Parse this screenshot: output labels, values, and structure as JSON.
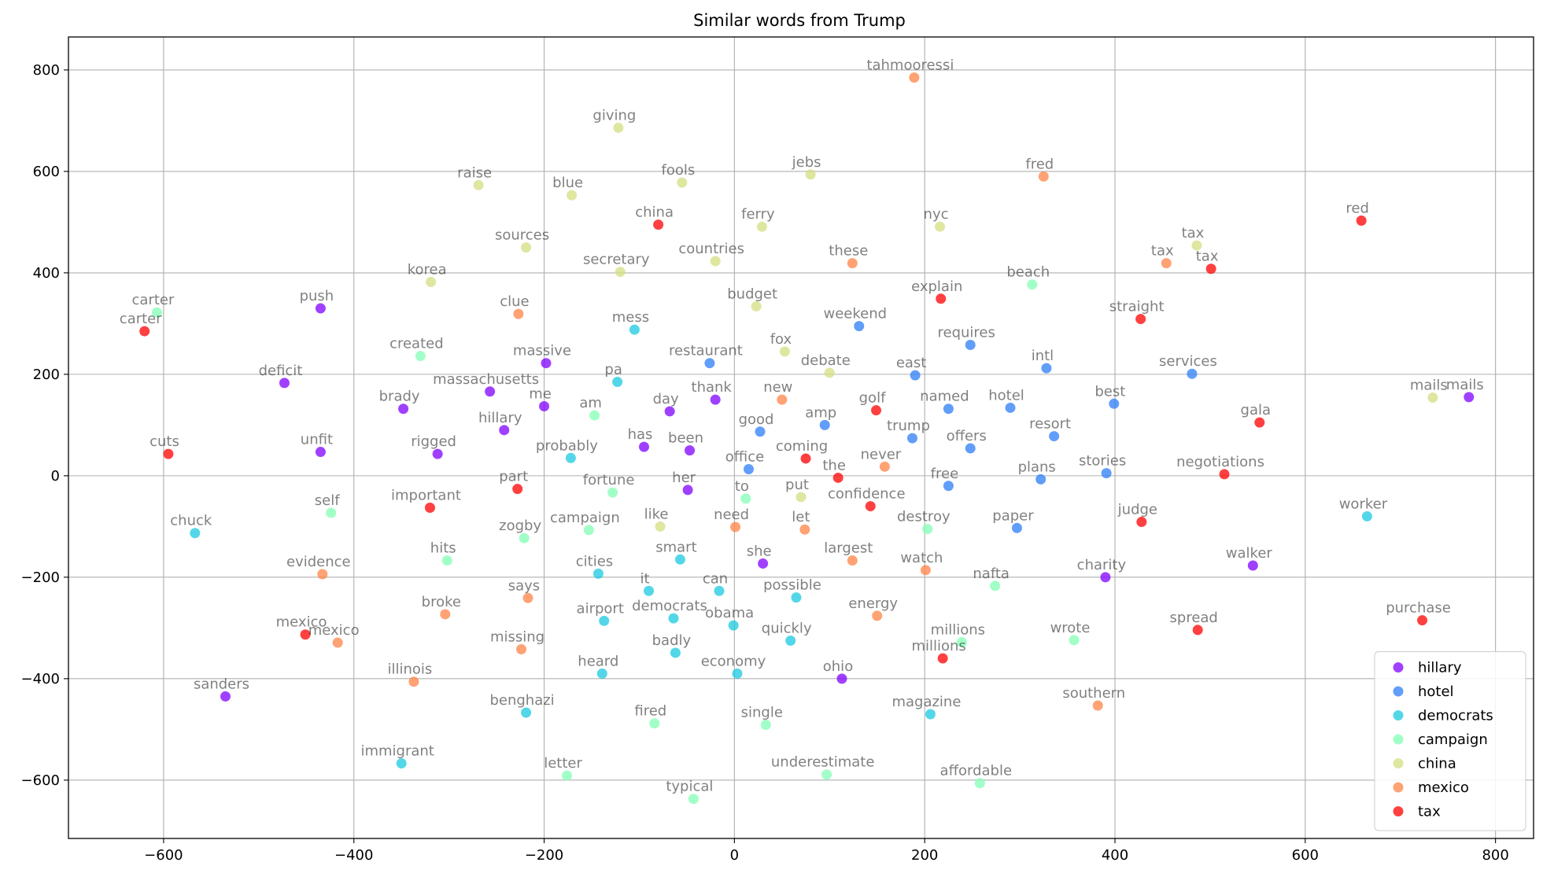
{
  "chart_data": {
    "type": "scatter",
    "title": "Similar words from Trump",
    "xlabel": "",
    "ylabel": "",
    "xlim": [
      -700,
      840
    ],
    "ylim": [
      -715,
      865
    ],
    "xticks": [
      -600,
      -400,
      -200,
      0,
      200,
      400,
      600,
      800
    ],
    "yticks": [
      -600,
      -400,
      -200,
      0,
      200,
      400,
      600,
      800
    ],
    "grid": true,
    "legend_position": "lower-right",
    "series": [
      {
        "name": "hillary",
        "color": "#8000ff",
        "points": [
          {
            "x": 772,
            "y": 155,
            "label": "mails"
          },
          {
            "x": 545,
            "y": -177,
            "label": "walker"
          },
          {
            "x": 390,
            "y": -200,
            "label": "charity"
          },
          {
            "x": -435,
            "y": 330,
            "label": "push"
          },
          {
            "x": -473,
            "y": 183,
            "label": "deficit"
          },
          {
            "x": -348,
            "y": 132,
            "label": "brady"
          },
          {
            "x": -435,
            "y": 47,
            "label": "unfit"
          },
          {
            "x": -312,
            "y": 43,
            "label": "rigged"
          },
          {
            "x": -198,
            "y": 222,
            "label": "massive"
          },
          {
            "x": -257,
            "y": 166,
            "label": "massachusetts"
          },
          {
            "x": -200,
            "y": 137,
            "label": "me"
          },
          {
            "x": -242,
            "y": 90,
            "label": "hillary"
          },
          {
            "x": -68,
            "y": 127,
            "label": "day"
          },
          {
            "x": -20,
            "y": 150,
            "label": "thank"
          },
          {
            "x": -47,
            "y": 50,
            "label": "been"
          },
          {
            "x": -95,
            "y": 57,
            "label": "has"
          },
          {
            "x": -49,
            "y": -28,
            "label": "her"
          },
          {
            "x": 30,
            "y": -173,
            "label": "she"
          },
          {
            "x": 113,
            "y": -400,
            "label": "ohio"
          },
          {
            "x": -535,
            "y": -435,
            "label": "sanders"
          }
        ]
      },
      {
        "name": "hotel",
        "color": "#2c7ef7",
        "points": [
          {
            "x": 131,
            "y": 295,
            "label": "weekend"
          },
          {
            "x": -26,
            "y": 222,
            "label": "restaurant"
          },
          {
            "x": 248,
            "y": 258,
            "label": "requires"
          },
          {
            "x": 328,
            "y": 212,
            "label": "intl"
          },
          {
            "x": 481,
            "y": 201,
            "label": "services"
          },
          {
            "x": 190,
            "y": 198,
            "label": "east"
          },
          {
            "x": 399,
            "y": 142,
            "label": "best"
          },
          {
            "x": 290,
            "y": 134,
            "label": "hotel"
          },
          {
            "x": 225,
            "y": 132,
            "label": "named"
          },
          {
            "x": 95,
            "y": 100,
            "label": "amp"
          },
          {
            "x": 27,
            "y": 87,
            "label": "good"
          },
          {
            "x": 187,
            "y": 74,
            "label": "trump"
          },
          {
            "x": 336,
            "y": 78,
            "label": "resort"
          },
          {
            "x": 248,
            "y": 54,
            "label": "offers"
          },
          {
            "x": 15,
            "y": 13,
            "label": "office"
          },
          {
            "x": 225,
            "y": -20,
            "label": "free"
          },
          {
            "x": 322,
            "y": -7,
            "label": "plans"
          },
          {
            "x": 391,
            "y": 5,
            "label": "stories"
          },
          {
            "x": 297,
            "y": -103,
            "label": "paper"
          }
        ]
      },
      {
        "name": "democrats",
        "color": "#1ac9e0",
        "points": [
          {
            "x": -105,
            "y": 288,
            "label": "mess"
          },
          {
            "x": -123,
            "y": 185,
            "label": "pa"
          },
          {
            "x": -172,
            "y": 35,
            "label": "probably"
          },
          {
            "x": -567,
            "y": -113,
            "label": "chuck"
          },
          {
            "x": 665,
            "y": -80,
            "label": "worker"
          },
          {
            "x": -57,
            "y": -165,
            "label": "smart"
          },
          {
            "x": -143,
            "y": -193,
            "label": "cities"
          },
          {
            "x": -90,
            "y": -227,
            "label": "it"
          },
          {
            "x": -16,
            "y": -227,
            "label": "can"
          },
          {
            "x": 65,
            "y": -240,
            "label": "possible"
          },
          {
            "x": -137,
            "y": -286,
            "label": "airport"
          },
          {
            "x": -64,
            "y": -281,
            "label": "democrats"
          },
          {
            "x": -1,
            "y": -295,
            "label": "obama"
          },
          {
            "x": 59,
            "y": -325,
            "label": "quickly"
          },
          {
            "x": -62,
            "y": -349,
            "label": "badly"
          },
          {
            "x": 3,
            "y": -390,
            "label": "economy"
          },
          {
            "x": -139,
            "y": -390,
            "label": "heard"
          },
          {
            "x": -219,
            "y": -467,
            "label": "benghazi"
          },
          {
            "x": 206,
            "y": -470,
            "label": "magazine"
          },
          {
            "x": -350,
            "y": -567,
            "label": "immigrant"
          }
        ]
      },
      {
        "name": "campaign",
        "color": "#81ffb4",
        "points": [
          {
            "x": -607,
            "y": 322,
            "label": "carter"
          },
          {
            "x": 313,
            "y": 377,
            "label": "beach"
          },
          {
            "x": -330,
            "y": 236,
            "label": "created"
          },
          {
            "x": -147,
            "y": 119,
            "label": "am"
          },
          {
            "x": -128,
            "y": -33,
            "label": "fortune"
          },
          {
            "x": 12,
            "y": -45,
            "label": "to"
          },
          {
            "x": -424,
            "y": -73,
            "label": "self"
          },
          {
            "x": 203,
            "y": -105,
            "label": "destroy"
          },
          {
            "x": -153,
            "y": -107,
            "label": "campaign"
          },
          {
            "x": -221,
            "y": -123,
            "label": "zogby"
          },
          {
            "x": -302,
            "y": -167,
            "label": "hits"
          },
          {
            "x": 274,
            "y": -217,
            "label": "nafta"
          },
          {
            "x": 239,
            "y": -328,
            "label": "millions"
          },
          {
            "x": 357,
            "y": -324,
            "label": "wrote"
          },
          {
            "x": -84,
            "y": -488,
            "label": "fired"
          },
          {
            "x": 33,
            "y": -491,
            "label": "single"
          },
          {
            "x": -176,
            "y": -591,
            "label": "letter"
          },
          {
            "x": 97,
            "y": -589,
            "label": "underestimate"
          },
          {
            "x": 258,
            "y": -606,
            "label": "affordable"
          },
          {
            "x": -43,
            "y": -637,
            "label": "typical"
          }
        ]
      },
      {
        "name": "china",
        "color": "#d4dd80",
        "points": [
          {
            "x": -122,
            "y": 686,
            "label": "giving"
          },
          {
            "x": -269,
            "y": 573,
            "label": "raise"
          },
          {
            "x": -171,
            "y": 553,
            "label": "blue"
          },
          {
            "x": -55,
            "y": 578,
            "label": "fools"
          },
          {
            "x": 80,
            "y": 594,
            "label": "jebs"
          },
          {
            "x": 29,
            "y": 491,
            "label": "ferry"
          },
          {
            "x": 216,
            "y": 491,
            "label": "nyc"
          },
          {
            "x": -219,
            "y": 450,
            "label": "sources"
          },
          {
            "x": -20,
            "y": 423,
            "label": "countries"
          },
          {
            "x": -120,
            "y": 402,
            "label": "secretary"
          },
          {
            "x": 486,
            "y": 454,
            "label": "tax"
          },
          {
            "x": -319,
            "y": 382,
            "label": "korea"
          },
          {
            "x": 23,
            "y": 334,
            "label": "budget"
          },
          {
            "x": 53,
            "y": 245,
            "label": "fox"
          },
          {
            "x": 100,
            "y": 203,
            "label": "debate"
          },
          {
            "x": 734,
            "y": 154,
            "label": "mails"
          },
          {
            "x": 70,
            "y": -42,
            "label": "put"
          },
          {
            "x": -78,
            "y": -100,
            "label": "like"
          }
        ]
      },
      {
        "name": "mexico",
        "color": "#ff8346",
        "points": [
          {
            "x": 189,
            "y": 785,
            "label": "tahmooressi"
          },
          {
            "x": 325,
            "y": 590,
            "label": "fred"
          },
          {
            "x": 124,
            "y": 419,
            "label": "these"
          },
          {
            "x": 454,
            "y": 419,
            "label": "tax"
          },
          {
            "x": -227,
            "y": 319,
            "label": "clue"
          },
          {
            "x": 50,
            "y": 150,
            "label": "new"
          },
          {
            "x": 158,
            "y": 18,
            "label": "never"
          },
          {
            "x": 1,
            "y": -101,
            "label": "need"
          },
          {
            "x": 74,
            "y": -106,
            "label": "let"
          },
          {
            "x": 124,
            "y": -167,
            "label": "largest"
          },
          {
            "x": 201,
            "y": -186,
            "label": "watch"
          },
          {
            "x": -433,
            "y": -194,
            "label": "evidence"
          },
          {
            "x": -217,
            "y": -241,
            "label": "says"
          },
          {
            "x": -304,
            "y": -273,
            "label": "broke"
          },
          {
            "x": 150,
            "y": -276,
            "label": "energy"
          },
          {
            "x": -417,
            "y": -329,
            "label": "mexico"
          },
          {
            "x": -224,
            "y": -342,
            "label": "missing"
          },
          {
            "x": -337,
            "y": -406,
            "label": "illinois"
          },
          {
            "x": 382,
            "y": -453,
            "label": "southern"
          }
        ]
      },
      {
        "name": "tax",
        "color": "#ff0000",
        "points": [
          {
            "x": 659,
            "y": 503,
            "label": "red"
          },
          {
            "x": -80,
            "y": 495,
            "label": "china"
          },
          {
            "x": 501,
            "y": 408,
            "label": "tax"
          },
          {
            "x": 217,
            "y": 349,
            "label": "explain"
          },
          {
            "x": 427,
            "y": 309,
            "label": "straight"
          },
          {
            "x": -620,
            "y": 285,
            "label": "carter"
          },
          {
            "x": 149,
            "y": 129,
            "label": "golf"
          },
          {
            "x": 552,
            "y": 105,
            "label": "gala"
          },
          {
            "x": -595,
            "y": 43,
            "label": "cuts"
          },
          {
            "x": 75,
            "y": 34,
            "label": "coming"
          },
          {
            "x": 109,
            "y": -4,
            "label": "the"
          },
          {
            "x": 515,
            "y": 3,
            "label": "negotiations"
          },
          {
            "x": -228,
            "y": -26,
            "label": "part"
          },
          {
            "x": -320,
            "y": -63,
            "label": "important"
          },
          {
            "x": 143,
            "y": -60,
            "label": "confidence"
          },
          {
            "x": 428,
            "y": -91,
            "label": "judge"
          },
          {
            "x": 723,
            "y": -285,
            "label": "purchase"
          },
          {
            "x": 487,
            "y": -304,
            "label": "spread"
          },
          {
            "x": -451,
            "y": -313,
            "label": "mexico"
          },
          {
            "x": 219,
            "y": -360,
            "label": "millions"
          }
        ]
      }
    ]
  }
}
